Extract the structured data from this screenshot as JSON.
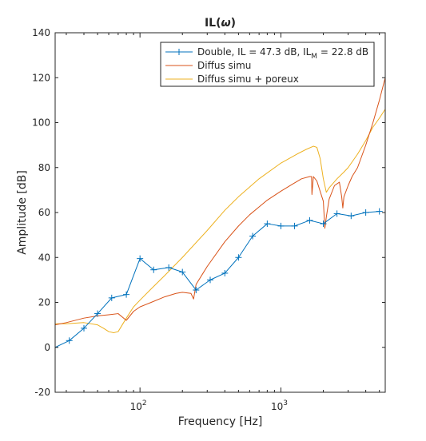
{
  "chart_data": {
    "type": "line",
    "title": "IL(ω)",
    "title_parts": [
      "IL(",
      "ω",
      ")"
    ],
    "xlabel": "Frequency [Hz]",
    "ylabel": "Amplitude [dB]",
    "xscale": "log",
    "xlim": [
      25,
      5500
    ],
    "ylim": [
      -20,
      140
    ],
    "yticks": [
      -20,
      0,
      20,
      40,
      60,
      80,
      100,
      120,
      140
    ],
    "xticks": [
      {
        "value": 100,
        "base": "10",
        "exp": "2"
      },
      {
        "value": 1000,
        "base": "10",
        "exp": "3"
      }
    ],
    "grid": false,
    "legend_position": "top-right",
    "series": [
      {
        "name": "Double, IL = 47.3 dB, IL",
        "name_sub": "M",
        "name_tail": " = 22.8 dB",
        "color": "#0072BD",
        "marker": "+",
        "x": [
          25,
          31.5,
          40,
          50,
          63,
          80,
          100,
          125,
          160,
          200,
          250,
          315,
          400,
          500,
          630,
          800,
          1000,
          1250,
          1600,
          2000,
          2500,
          3150,
          4000,
          5000
        ],
        "y": [
          0,
          3,
          8.5,
          15,
          22,
          23.5,
          39.5,
          34.5,
          35.5,
          33.5,
          25.5,
          30,
          33,
          40,
          49.5,
          55,
          54,
          54,
          56.5,
          55,
          59.5,
          58.5,
          60,
          60.5
        ]
      },
      {
        "name": "Diffus simu",
        "color": "#D95319",
        "x": [
          25,
          30,
          40,
          50,
          60,
          70,
          80,
          90,
          100,
          120,
          150,
          180,
          200,
          230,
          240,
          250,
          300,
          400,
          500,
          600,
          700,
          800,
          1000,
          1200,
          1400,
          1600,
          1650,
          1660,
          1700,
          1800,
          2000,
          2050,
          2100,
          2200,
          2400,
          2600,
          2700,
          2750,
          2800,
          3000,
          3200,
          3500,
          4000,
          4500,
          5000,
          5500
        ],
        "y": [
          10,
          11,
          13,
          14,
          14.5,
          15,
          12,
          16,
          18,
          20,
          22.5,
          24,
          24.5,
          24,
          21.5,
          28,
          36,
          47,
          54,
          59,
          62.5,
          65.5,
          69.5,
          72.5,
          75,
          76,
          76,
          68,
          76,
          74,
          65,
          53,
          58,
          66,
          72,
          73.5,
          67,
          62,
          67,
          72,
          76,
          80,
          90,
          100,
          110,
          120
        ]
      },
      {
        "name": "Diffus simu + poreux",
        "color": "#EDB120",
        "x": [
          25,
          30,
          40,
          50,
          55,
          60,
          65,
          70,
          80,
          90,
          100,
          120,
          150,
          200,
          300,
          400,
          500,
          700,
          1000,
          1300,
          1500,
          1700,
          1800,
          1900,
          2000,
          2100,
          2200,
          2500,
          2800,
          3000,
          3500,
          4000,
          4500,
          5000,
          5500
        ],
        "y": [
          10.5,
          10.5,
          11,
          10,
          8.5,
          7,
          6.5,
          7,
          13,
          18,
          21,
          26,
          32,
          40,
          52,
          61,
          67,
          75,
          82,
          86,
          88,
          89.5,
          89,
          84,
          75,
          69,
          71,
          75,
          78,
          80,
          86,
          92,
          98,
          102,
          106
        ]
      }
    ]
  }
}
